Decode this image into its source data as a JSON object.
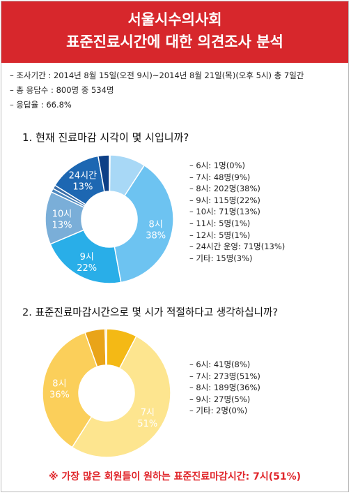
{
  "header": {
    "title_line1": "서울시수의사회",
    "title_line2": "표준진료시간에 대한 의견조사 분석"
  },
  "info": {
    "lines": [
      "– 조사기간 : 2014년 8월 15일(오전 9시)~2014년 8월 21일(목)(오후 5시) 총 7일간",
      "– 총 응답수 : 800명 중 534명",
      "– 응답율 : 66.8%"
    ]
  },
  "colors": {
    "header_bg": "#d7272c",
    "footer_text": "#e0262b"
  },
  "chart_data": [
    {
      "type": "pie",
      "title": "1. 현재 진료마감 시각이 몇 시입니까?",
      "donut": true,
      "slices": [
        {
          "label": "6시",
          "count": 1,
          "percent": 0,
          "color": "#a8d8f6"
        },
        {
          "label": "7시",
          "count": 48,
          "percent": 9,
          "color": "#a8d8f6"
        },
        {
          "label": "8시",
          "count": 202,
          "percent": 38,
          "color": "#6dc3f1",
          "inner_label": "8시",
          "inner_pct": "38%"
        },
        {
          "label": "9시",
          "count": 115,
          "percent": 22,
          "color": "#29aee8",
          "inner_label": "9시",
          "inner_pct": "22%"
        },
        {
          "label": "10시",
          "count": 71,
          "percent": 13,
          "color": "#7aaed8",
          "inner_label": "10시",
          "inner_pct": "13%"
        },
        {
          "label": "11시",
          "count": 5,
          "percent": 1,
          "color": "#4a86be"
        },
        {
          "label": "12시",
          "count": 5,
          "percent": 1,
          "color": "#3a6ea8"
        },
        {
          "label": "24시간",
          "count": 71,
          "percent": 13,
          "color": "#1d67b2",
          "inner_label": "24시간",
          "inner_pct": "13%"
        },
        {
          "label": "기타",
          "count": 15,
          "percent": 3,
          "color": "#0d3f86"
        }
      ],
      "legend": [
        "– 6시: 1명(0%)",
        "– 7시: 48명(9%)",
        "– 8시: 202명(38%)",
        "– 9시: 115명(22%)",
        "– 10시: 71명(13%)",
        "– 11시: 5명(1%)",
        "– 12시: 5명(1%)",
        "– 24시간 운영: 71명(13%)",
        "– 기타: 15명(3%)"
      ]
    },
    {
      "type": "pie",
      "title": "2. 표준진료마감시간으로 몇 시가 적절하다고 생각하십니까?",
      "donut": true,
      "slices": [
        {
          "label": "6시",
          "count": 41,
          "percent": 8,
          "color": "#f4b915"
        },
        {
          "label": "7시",
          "count": 273,
          "percent": 51,
          "color": "#fde58f",
          "inner_label": "7시",
          "inner_pct": "51%"
        },
        {
          "label": "8시",
          "count": 189,
          "percent": 36,
          "color": "#fbcf5a",
          "inner_label": "8시",
          "inner_pct": "36%"
        },
        {
          "label": "9시",
          "count": 27,
          "percent": 5,
          "color": "#e9a419"
        },
        {
          "label": "기타",
          "count": 2,
          "percent": 0,
          "color": "#fbd98a"
        }
      ],
      "legend": [
        "– 6시: 41명(8%)",
        "– 7시: 273명(51%)",
        "– 8시: 189명(36%)",
        "– 9시: 27명(5%)",
        "– 기타: 2명(0%)"
      ]
    }
  ],
  "footer": {
    "note": "※ 가장 많은 회원들이 원하는 표준진료마감시간: 7시(51%)"
  }
}
